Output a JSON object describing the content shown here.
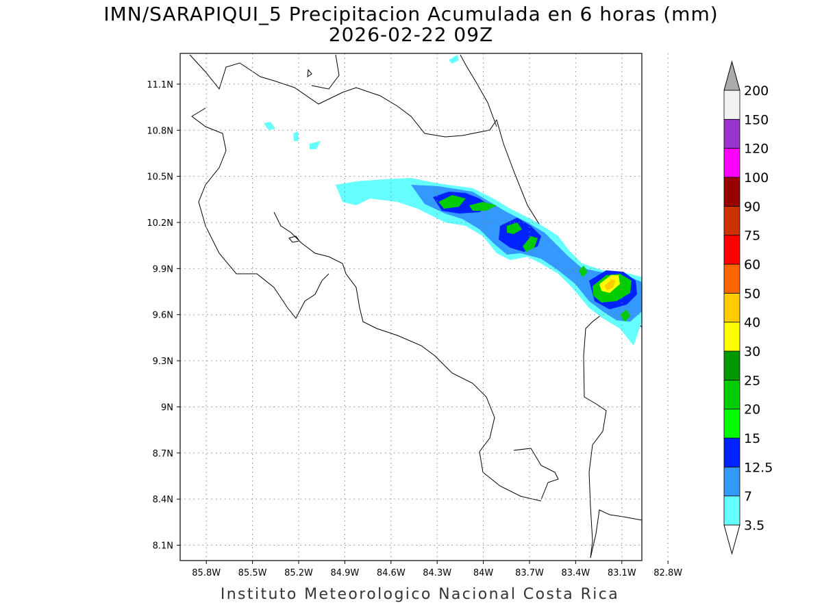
{
  "title_line1": "IMN/SARAPIQUI_5 Precipitacion Acumulada en 6 horas (mm)",
  "title_line2": "2026-02-22 09Z",
  "credit": "Instituto Meteorologico Nacional Costa Rica",
  "map": {
    "lon_range": [
      -85.97,
      -82.97
    ],
    "lat_range": [
      8.0,
      11.3
    ],
    "lon_ticks": [
      "85.8W",
      "85.5W",
      "85.2W",
      "84.9W",
      "84.6W",
      "84.3W",
      "84W",
      "83.7W",
      "83.4W",
      "83.1W",
      "82.8W"
    ],
    "lat_ticks": [
      "8.1N",
      "8.4N",
      "8.7N",
      "9N",
      "9.3N",
      "9.6N",
      "9.9N",
      "10.2N",
      "10.5N",
      "10.8N",
      "11.1N"
    ],
    "grid": "dotted"
  },
  "colorbar": {
    "labels": [
      "3.5",
      "7",
      "12.5",
      "15",
      "20",
      "25",
      "30",
      "40",
      "50",
      "60",
      "75",
      "90",
      "100",
      "120",
      "150",
      "200"
    ],
    "colors": [
      "#66ffff",
      "#3399ff",
      "#0022ff",
      "#00ff00",
      "#00cc00",
      "#009900",
      "#ffff00",
      "#ffcc00",
      "#ff6600",
      "#ff0000",
      "#cc3300",
      "#990000",
      "#ff00ff",
      "#9933cc",
      "#f2f2f2"
    ],
    "over_color": "#aaaaaa",
    "under_color": "#ffffff"
  }
}
